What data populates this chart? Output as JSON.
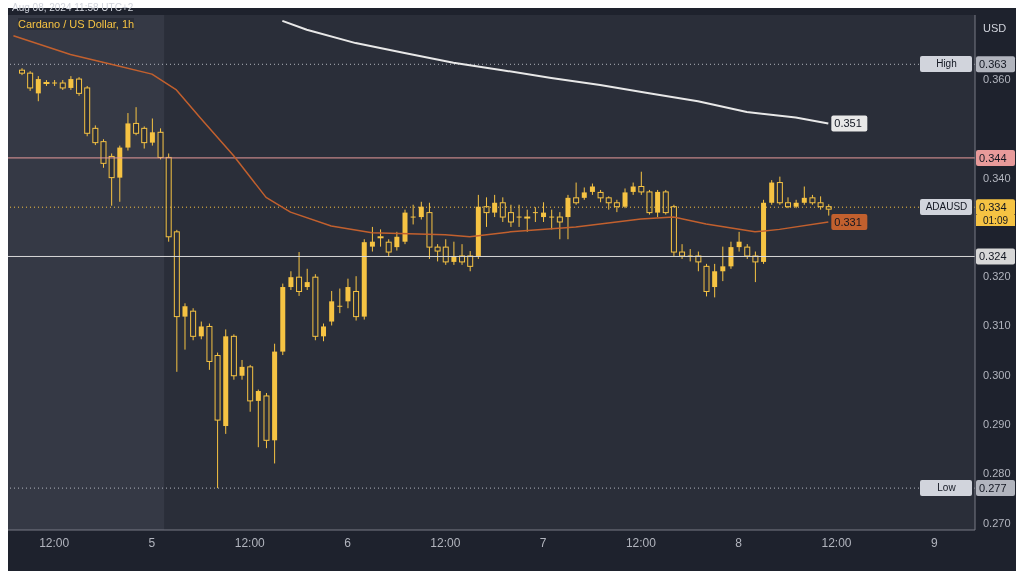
{
  "chart_data": {
    "type": "candlestick",
    "title": "Cardano / US Dollar, 1h",
    "subtitle": "Aug 08, 2024 11:58 UTC+2",
    "ylabel": "USD",
    "annotations": [
      {
        "text": "High",
        "x": "2024-08-09T01:30",
        "y": 0.363
      },
      {
        "text": "Low",
        "x": "2024-08-09T01:30",
        "y": 0.277
      },
      {
        "text": "ADAUSD",
        "x": "2024-08-09T01:30",
        "y": 0.334
      },
      "01:09"
    ],
    "color": "#f6c343",
    "x": [
      "2024-08-04T08:00",
      "2024-08-04T09:00",
      "2024-08-04T10:00",
      "2024-08-04T11:00",
      "2024-08-04T12:00",
      "2024-08-04T13:00",
      "2024-08-04T14:00",
      "2024-08-04T15:00",
      "2024-08-04T16:00",
      "2024-08-04T17:00",
      "2024-08-04T18:00",
      "2024-08-04T19:00",
      "2024-08-04T20:00",
      "2024-08-04T21:00",
      "2024-08-04T22:00",
      "2024-08-04T23:00",
      "2024-08-05T00:00",
      "2024-08-05T01:00",
      "2024-08-05T02:00",
      "2024-08-05T03:00",
      "2024-08-05T04:00",
      "2024-08-05T05:00",
      "2024-08-05T06:00",
      "2024-08-05T07:00",
      "2024-08-05T08:00",
      "2024-08-05T09:00",
      "2024-08-05T10:00",
      "2024-08-05T11:00",
      "2024-08-05T12:00",
      "2024-08-05T13:00",
      "2024-08-05T14:00",
      "2024-08-05T15:00",
      "2024-08-05T16:00",
      "2024-08-05T17:00",
      "2024-08-05T18:00",
      "2024-08-05T19:00",
      "2024-08-05T20:00",
      "2024-08-05T21:00",
      "2024-08-05T22:00",
      "2024-08-05T23:00",
      "2024-08-06T00:00",
      "2024-08-06T01:00",
      "2024-08-06T02:00",
      "2024-08-06T03:00",
      "2024-08-06T04:00",
      "2024-08-06T05:00",
      "2024-08-06T06:00",
      "2024-08-06T07:00",
      "2024-08-06T08:00",
      "2024-08-06T09:00",
      "2024-08-06T10:00",
      "2024-08-06T11:00",
      "2024-08-06T12:00",
      "2024-08-06T13:00",
      "2024-08-06T14:00",
      "2024-08-06T15:00",
      "2024-08-06T16:00",
      "2024-08-06T17:00",
      "2024-08-06T18:00",
      "2024-08-06T19:00",
      "2024-08-06T20:00",
      "2024-08-06T21:00",
      "2024-08-06T22:00",
      "2024-08-06T23:00",
      "2024-08-07T00:00",
      "2024-08-07T01:00",
      "2024-08-07T02:00",
      "2024-08-07T03:00",
      "2024-08-07T04:00",
      "2024-08-07T05:00",
      "2024-08-07T06:00",
      "2024-08-07T07:00",
      "2024-08-07T08:00",
      "2024-08-07T09:00",
      "2024-08-07T10:00",
      "2024-08-07T11:00",
      "2024-08-07T12:00",
      "2024-08-07T13:00",
      "2024-08-07T14:00",
      "2024-08-07T15:00",
      "2024-08-07T16:00",
      "2024-08-07T17:00",
      "2024-08-07T18:00",
      "2024-08-07T19:00",
      "2024-08-07T20:00",
      "2024-08-07T21:00",
      "2024-08-07T22:00",
      "2024-08-07T23:00",
      "2024-08-08T00:00",
      "2024-08-08T01:00",
      "2024-08-08T02:00",
      "2024-08-08T03:00",
      "2024-08-08T04:00",
      "2024-08-08T05:00",
      "2024-08-08T06:00",
      "2024-08-08T07:00",
      "2024-08-08T08:00",
      "2024-08-08T09:00",
      "2024-08-08T10:00",
      "2024-08-08T11:00"
    ],
    "ohlc": [
      [
        0.3618,
        0.3622,
        0.3608,
        0.3612
      ],
      [
        0.3612,
        0.3616,
        0.3576,
        0.3582
      ],
      [
        0.3571,
        0.3606,
        0.3555,
        0.36
      ],
      [
        0.3593,
        0.3598,
        0.3586,
        0.3592
      ],
      [
        0.3592,
        0.3598,
        0.3586,
        0.3593
      ],
      [
        0.3592,
        0.3598,
        0.3578,
        0.3582
      ],
      [
        0.3582,
        0.3606,
        0.3578,
        0.36
      ],
      [
        0.36,
        0.3604,
        0.3566,
        0.3571
      ],
      [
        0.3582,
        0.3586,
        0.3484,
        0.349
      ],
      [
        0.35,
        0.3506,
        0.3466,
        0.3471
      ],
      [
        0.3473,
        0.3478,
        0.342,
        0.3429
      ],
      [
        0.3443,
        0.3449,
        0.3343,
        0.34
      ],
      [
        0.34,
        0.3465,
        0.3351,
        0.3461
      ],
      [
        0.3461,
        0.3531,
        0.3455,
        0.351
      ],
      [
        0.351,
        0.3543,
        0.3486,
        0.349
      ],
      [
        0.35,
        0.3504,
        0.3459,
        0.3471
      ],
      [
        0.3471,
        0.352,
        0.3465,
        0.3492
      ],
      [
        0.3492,
        0.35,
        0.3437,
        0.3441
      ],
      [
        0.3441,
        0.3449,
        0.327,
        0.328
      ],
      [
        0.329,
        0.3294,
        0.3006,
        0.3118
      ],
      [
        0.3118,
        0.3145,
        0.3051,
        0.3139
      ],
      [
        0.3129,
        0.3135,
        0.307,
        0.3078
      ],
      [
        0.3078,
        0.3108,
        0.3072,
        0.3098
      ],
      [
        0.3098,
        0.3104,
        0.301,
        0.3027
      ],
      [
        0.3039,
        0.3045,
        0.277,
        0.2908
      ],
      [
        0.2896,
        0.3092,
        0.288,
        0.3078
      ],
      [
        0.3078,
        0.3082,
        0.299,
        0.2998
      ],
      [
        0.2998,
        0.303,
        0.299,
        0.3016
      ],
      [
        0.3016,
        0.302,
        0.2925,
        0.2947
      ],
      [
        0.2947,
        0.297,
        0.2853,
        0.2967
      ],
      [
        0.2957,
        0.2963,
        0.2851,
        0.2867
      ],
      [
        0.2867,
        0.3063,
        0.282,
        0.3047
      ],
      [
        0.3047,
        0.3185,
        0.304,
        0.3178
      ],
      [
        0.3178,
        0.321,
        0.3172,
        0.3198
      ],
      [
        0.3198,
        0.3249,
        0.316,
        0.3169
      ],
      [
        0.3178,
        0.3215,
        0.3172,
        0.3188
      ],
      [
        0.3198,
        0.3204,
        0.307,
        0.3078
      ],
      [
        0.3078,
        0.3104,
        0.3068,
        0.3098
      ],
      [
        0.3108,
        0.317,
        0.31,
        0.3149
      ],
      [
        0.3139,
        0.3175,
        0.3125,
        0.314
      ],
      [
        0.3149,
        0.3195,
        0.3135,
        0.3178
      ],
      [
        0.3169,
        0.32,
        0.311,
        0.3118
      ],
      [
        0.3118,
        0.3275,
        0.3112,
        0.3269
      ],
      [
        0.326,
        0.33,
        0.325,
        0.327
      ],
      [
        0.328,
        0.3295,
        0.326,
        0.3279
      ],
      [
        0.3269,
        0.3275,
        0.324,
        0.3249
      ],
      [
        0.3259,
        0.329,
        0.3252,
        0.328
      ],
      [
        0.327,
        0.3335,
        0.3265,
        0.3329
      ],
      [
        0.332,
        0.3345,
        0.3305,
        0.3321
      ],
      [
        0.332,
        0.3351,
        0.3315,
        0.3341
      ],
      [
        0.3329,
        0.3349,
        0.3235,
        0.3259
      ],
      [
        0.3259,
        0.3265,
        0.323,
        0.3251
      ],
      [
        0.3259,
        0.3275,
        0.3223,
        0.3229
      ],
      [
        0.3229,
        0.327,
        0.3223,
        0.3241
      ],
      [
        0.3241,
        0.3265,
        0.3223,
        0.3229
      ],
      [
        0.3241,
        0.3251,
        0.321,
        0.322
      ],
      [
        0.3241,
        0.3365,
        0.3235,
        0.3341
      ],
      [
        0.3341,
        0.336,
        0.33,
        0.3329
      ],
      [
        0.3329,
        0.3365,
        0.332,
        0.3349
      ],
      [
        0.3349,
        0.336,
        0.331,
        0.332
      ],
      [
        0.3329,
        0.3345,
        0.33,
        0.331
      ],
      [
        0.332,
        0.3345,
        0.33,
        0.3321
      ],
      [
        0.332,
        0.3335,
        0.329,
        0.3319
      ],
      [
        0.3329,
        0.334,
        0.331,
        0.333
      ],
      [
        0.332,
        0.335,
        0.331,
        0.3329
      ],
      [
        0.332,
        0.3335,
        0.3295,
        0.3321
      ],
      [
        0.332,
        0.333,
        0.3275,
        0.331
      ],
      [
        0.332,
        0.3365,
        0.3275,
        0.3359
      ],
      [
        0.3359,
        0.339,
        0.3345,
        0.3349
      ],
      [
        0.3359,
        0.338,
        0.3355,
        0.337
      ],
      [
        0.3371,
        0.3388,
        0.3365,
        0.3382
      ],
      [
        0.337,
        0.3375,
        0.335,
        0.3359
      ],
      [
        0.3359,
        0.3362,
        0.3335,
        0.3349
      ],
      [
        0.3349,
        0.3355,
        0.333,
        0.3341
      ],
      [
        0.3341,
        0.3378,
        0.3338,
        0.337
      ],
      [
        0.3371,
        0.339,
        0.3365,
        0.3382
      ],
      [
        0.3382,
        0.3412,
        0.3365,
        0.3371
      ],
      [
        0.3371,
        0.3375,
        0.3325,
        0.3329
      ],
      [
        0.3329,
        0.3375,
        0.332,
        0.3371
      ],
      [
        0.3371,
        0.3375,
        0.3325,
        0.3329
      ],
      [
        0.3341,
        0.3345,
        0.324,
        0.3249
      ],
      [
        0.3249,
        0.3265,
        0.3235,
        0.3241
      ],
      [
        0.3241,
        0.3255,
        0.323,
        0.3242
      ],
      [
        0.3241,
        0.325,
        0.321,
        0.3229
      ],
      [
        0.322,
        0.3225,
        0.3159,
        0.3169
      ],
      [
        0.3178,
        0.3225,
        0.3157,
        0.321
      ],
      [
        0.321,
        0.326,
        0.319,
        0.322
      ],
      [
        0.322,
        0.327,
        0.3215,
        0.3259
      ],
      [
        0.3259,
        0.329,
        0.325,
        0.327
      ],
      [
        0.3259,
        0.3265,
        0.3235,
        0.3241
      ],
      [
        0.3241,
        0.325,
        0.3188,
        0.3229
      ],
      [
        0.3229,
        0.3355,
        0.3225,
        0.3349
      ],
      [
        0.3349,
        0.3395,
        0.3345,
        0.339
      ],
      [
        0.339,
        0.3402,
        0.3345,
        0.3349
      ],
      [
        0.3349,
        0.336,
        0.3338,
        0.3341
      ],
      [
        0.3341,
        0.3355,
        0.3338,
        0.3349
      ],
      [
        0.3349,
        0.3382,
        0.3345,
        0.3359
      ],
      [
        0.3359,
        0.3365,
        0.3345,
        0.3349
      ],
      [
        0.3349,
        0.3362,
        0.3335,
        0.3341
      ],
      [
        0.3341,
        0.3346,
        0.3323,
        0.3336
      ]
    ],
    "series": [
      {
        "type": "line",
        "color": "#c2602e",
        "x": [
          "2024-08-04T07:00",
          "2024-08-04T14:00",
          "2024-08-04T19:00",
          "2024-08-05T00:00",
          "2024-08-05T03:00",
          "2024-08-05T06:00",
          "2024-08-05T10:00",
          "2024-08-05T14:00",
          "2024-08-05T17:00",
          "2024-08-05T22:00",
          "2024-08-06T03:00",
          "2024-08-06T12:00",
          "2024-08-06T15:00",
          "2024-08-06T20:00",
          "2024-08-07T04:00",
          "2024-08-07T12:00",
          "2024-08-07T16:00",
          "2024-08-07T20:00",
          "2024-08-08T02:00",
          "2024-08-08T05:00",
          "2024-08-08T11:00"
        ],
        "values": [
          0.3688,
          0.365,
          0.363,
          0.361,
          0.3578,
          0.352,
          0.3445,
          0.336,
          0.333,
          0.3302,
          0.3288,
          0.3284,
          0.328,
          0.329,
          0.33,
          0.3316,
          0.332,
          0.3306,
          0.329,
          0.3295,
          0.331
        ],
        "value_labels": [
          null,
          null,
          null,
          null,
          null,
          null,
          null,
          null,
          null,
          null,
          null,
          null,
          null,
          null,
          null,
          null,
          null,
          null,
          null,
          null,
          "0.331"
        ]
      },
      {
        "type": "line",
        "color": "#e8e8e8",
        "x": [
          "2024-08-05T16:00",
          "2024-08-05T19:00",
          "2024-08-06T01:00",
          "2024-08-06T07:00",
          "2024-08-06T13:00",
          "2024-08-06T19:00",
          "2024-08-07T01:00",
          "2024-08-07T07:00",
          "2024-08-07T13:00",
          "2024-08-07T19:00",
          "2024-08-08T01:00",
          "2024-08-08T07:00",
          "2024-08-08T11:00"
        ],
        "values": [
          0.3718,
          0.37,
          0.3673,
          0.3653,
          0.3633,
          0.3618,
          0.3602,
          0.3588,
          0.3571,
          0.3555,
          0.3533,
          0.3522,
          0.351
        ],
        "value_labels": [
          null,
          null,
          null,
          null,
          null,
          null,
          null,
          null,
          null,
          null,
          null,
          null,
          "0.351"
        ]
      }
    ],
    "xlim": [
      "2024-08-04T06:20",
      "2024-08-09T05:00"
    ],
    "xticks": [
      {
        "value": "2024-08-04T12:00",
        "label": "12:00"
      },
      {
        "value": "2024-08-05T00:00",
        "label": "5"
      },
      {
        "value": "2024-08-05T12:00",
        "label": "12:00"
      },
      {
        "value": "2024-08-06T00:00",
        "label": "6"
      },
      {
        "value": "2024-08-06T12:00",
        "label": "12:00"
      },
      {
        "value": "2024-08-07T00:00",
        "label": "7"
      },
      {
        "value": "2024-08-07T12:00",
        "label": "12:00"
      },
      {
        "value": "2024-08-08T00:00",
        "label": "8"
      },
      {
        "value": "2024-08-08T12:00",
        "label": "12:00"
      },
      {
        "value": "2024-08-09T00:00",
        "label": "9"
      }
    ],
    "ylim": [
      0.2685,
      0.373
    ],
    "yticks": [
      {
        "value": 0.27,
        "label": "0.270"
      },
      {
        "value": 0.28,
        "label": "0.280"
      },
      {
        "value": 0.29,
        "label": "0.290"
      },
      {
        "value": 0.3,
        "label": "0.300"
      },
      {
        "value": 0.31,
        "label": "0.310"
      },
      {
        "value": 0.32,
        "label": "0.320"
      },
      {
        "value": 0.34,
        "label": "0.340"
      },
      {
        "value": 0.36,
        "label": "0.360"
      }
    ],
    "ref_lines": [
      {
        "axis": "y",
        "value": 0.363,
        "label": "0.363",
        "color": "#b2b5be",
        "line_style": "dotted"
      },
      {
        "axis": "y",
        "value": 0.277,
        "label": "0.277",
        "color": "#b2b5be",
        "line_style": "dotted"
      },
      {
        "axis": "y",
        "value": 0.344,
        "label": "0.344",
        "color": "#e89a9a",
        "line_style": "solid"
      },
      {
        "axis": "y",
        "value": 0.334,
        "label": "0.334",
        "color": "#f6c343",
        "line_style": "dotted"
      },
      {
        "axis": "y",
        "value": 0.324,
        "label": "0.324",
        "color": "#d8d8d8",
        "line_style": "solid"
      }
    ],
    "bands": [
      {
        "axis": "x",
        "from": "2024-08-04T06:20",
        "to": "2024-08-05T01:30",
        "color": "#353945"
      }
    ],
    "grid": false,
    "legend": false
  }
}
